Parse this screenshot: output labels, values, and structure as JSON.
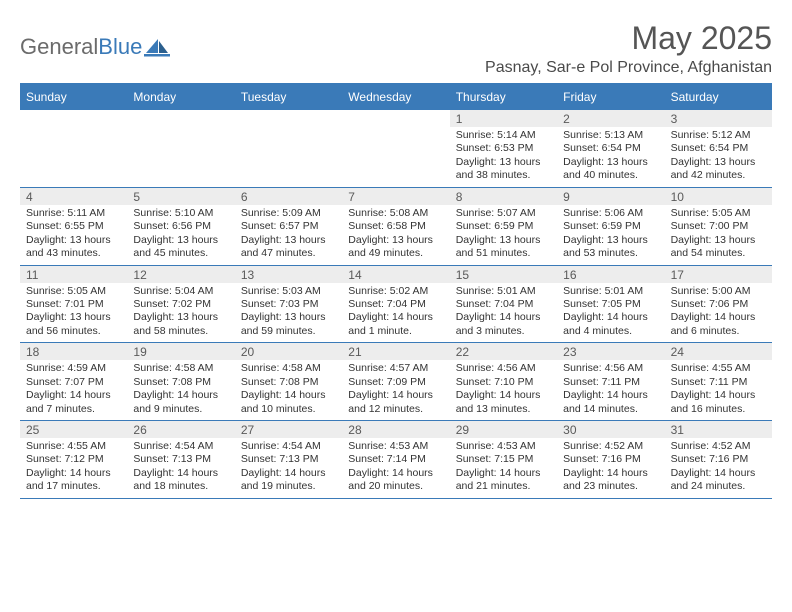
{
  "brand": {
    "general": "General",
    "blue": "Blue"
  },
  "title": "May 2025",
  "subtitle": "Pasnay, Sar-e Pol Province, Afghanistan",
  "dayHeaders": [
    "Sunday",
    "Monday",
    "Tuesday",
    "Wednesday",
    "Thursday",
    "Friday",
    "Saturday"
  ],
  "colors": {
    "accent": "#3a7ab8",
    "dayNumBg": "#ededed",
    "textMuted": "#6b6b6b",
    "title": "#555555"
  },
  "weeks": [
    [
      {
        "date": "",
        "lines": [
          "",
          "",
          "",
          ""
        ]
      },
      {
        "date": "",
        "lines": [
          "",
          "",
          "",
          ""
        ]
      },
      {
        "date": "",
        "lines": [
          "",
          "",
          "",
          ""
        ]
      },
      {
        "date": "",
        "lines": [
          "",
          "",
          "",
          ""
        ]
      },
      {
        "date": "1",
        "lines": [
          "Sunrise: 5:14 AM",
          "Sunset: 6:53 PM",
          "Daylight: 13 hours",
          "and 38 minutes."
        ]
      },
      {
        "date": "2",
        "lines": [
          "Sunrise: 5:13 AM",
          "Sunset: 6:54 PM",
          "Daylight: 13 hours",
          "and 40 minutes."
        ]
      },
      {
        "date": "3",
        "lines": [
          "Sunrise: 5:12 AM",
          "Sunset: 6:54 PM",
          "Daylight: 13 hours",
          "and 42 minutes."
        ]
      }
    ],
    [
      {
        "date": "4",
        "lines": [
          "Sunrise: 5:11 AM",
          "Sunset: 6:55 PM",
          "Daylight: 13 hours",
          "and 43 minutes."
        ]
      },
      {
        "date": "5",
        "lines": [
          "Sunrise: 5:10 AM",
          "Sunset: 6:56 PM",
          "Daylight: 13 hours",
          "and 45 minutes."
        ]
      },
      {
        "date": "6",
        "lines": [
          "Sunrise: 5:09 AM",
          "Sunset: 6:57 PM",
          "Daylight: 13 hours",
          "and 47 minutes."
        ]
      },
      {
        "date": "7",
        "lines": [
          "Sunrise: 5:08 AM",
          "Sunset: 6:58 PM",
          "Daylight: 13 hours",
          "and 49 minutes."
        ]
      },
      {
        "date": "8",
        "lines": [
          "Sunrise: 5:07 AM",
          "Sunset: 6:59 PM",
          "Daylight: 13 hours",
          "and 51 minutes."
        ]
      },
      {
        "date": "9",
        "lines": [
          "Sunrise: 5:06 AM",
          "Sunset: 6:59 PM",
          "Daylight: 13 hours",
          "and 53 minutes."
        ]
      },
      {
        "date": "10",
        "lines": [
          "Sunrise: 5:05 AM",
          "Sunset: 7:00 PM",
          "Daylight: 13 hours",
          "and 54 minutes."
        ]
      }
    ],
    [
      {
        "date": "11",
        "lines": [
          "Sunrise: 5:05 AM",
          "Sunset: 7:01 PM",
          "Daylight: 13 hours",
          "and 56 minutes."
        ]
      },
      {
        "date": "12",
        "lines": [
          "Sunrise: 5:04 AM",
          "Sunset: 7:02 PM",
          "Daylight: 13 hours",
          "and 58 minutes."
        ]
      },
      {
        "date": "13",
        "lines": [
          "Sunrise: 5:03 AM",
          "Sunset: 7:03 PM",
          "Daylight: 13 hours",
          "and 59 minutes."
        ]
      },
      {
        "date": "14",
        "lines": [
          "Sunrise: 5:02 AM",
          "Sunset: 7:04 PM",
          "Daylight: 14 hours",
          "and 1 minute."
        ]
      },
      {
        "date": "15",
        "lines": [
          "Sunrise: 5:01 AM",
          "Sunset: 7:04 PM",
          "Daylight: 14 hours",
          "and 3 minutes."
        ]
      },
      {
        "date": "16",
        "lines": [
          "Sunrise: 5:01 AM",
          "Sunset: 7:05 PM",
          "Daylight: 14 hours",
          "and 4 minutes."
        ]
      },
      {
        "date": "17",
        "lines": [
          "Sunrise: 5:00 AM",
          "Sunset: 7:06 PM",
          "Daylight: 14 hours",
          "and 6 minutes."
        ]
      }
    ],
    [
      {
        "date": "18",
        "lines": [
          "Sunrise: 4:59 AM",
          "Sunset: 7:07 PM",
          "Daylight: 14 hours",
          "and 7 minutes."
        ]
      },
      {
        "date": "19",
        "lines": [
          "Sunrise: 4:58 AM",
          "Sunset: 7:08 PM",
          "Daylight: 14 hours",
          "and 9 minutes."
        ]
      },
      {
        "date": "20",
        "lines": [
          "Sunrise: 4:58 AM",
          "Sunset: 7:08 PM",
          "Daylight: 14 hours",
          "and 10 minutes."
        ]
      },
      {
        "date": "21",
        "lines": [
          "Sunrise: 4:57 AM",
          "Sunset: 7:09 PM",
          "Daylight: 14 hours",
          "and 12 minutes."
        ]
      },
      {
        "date": "22",
        "lines": [
          "Sunrise: 4:56 AM",
          "Sunset: 7:10 PM",
          "Daylight: 14 hours",
          "and 13 minutes."
        ]
      },
      {
        "date": "23",
        "lines": [
          "Sunrise: 4:56 AM",
          "Sunset: 7:11 PM",
          "Daylight: 14 hours",
          "and 14 minutes."
        ]
      },
      {
        "date": "24",
        "lines": [
          "Sunrise: 4:55 AM",
          "Sunset: 7:11 PM",
          "Daylight: 14 hours",
          "and 16 minutes."
        ]
      }
    ],
    [
      {
        "date": "25",
        "lines": [
          "Sunrise: 4:55 AM",
          "Sunset: 7:12 PM",
          "Daylight: 14 hours",
          "and 17 minutes."
        ]
      },
      {
        "date": "26",
        "lines": [
          "Sunrise: 4:54 AM",
          "Sunset: 7:13 PM",
          "Daylight: 14 hours",
          "and 18 minutes."
        ]
      },
      {
        "date": "27",
        "lines": [
          "Sunrise: 4:54 AM",
          "Sunset: 7:13 PM",
          "Daylight: 14 hours",
          "and 19 minutes."
        ]
      },
      {
        "date": "28",
        "lines": [
          "Sunrise: 4:53 AM",
          "Sunset: 7:14 PM",
          "Daylight: 14 hours",
          "and 20 minutes."
        ]
      },
      {
        "date": "29",
        "lines": [
          "Sunrise: 4:53 AM",
          "Sunset: 7:15 PM",
          "Daylight: 14 hours",
          "and 21 minutes."
        ]
      },
      {
        "date": "30",
        "lines": [
          "Sunrise: 4:52 AM",
          "Sunset: 7:16 PM",
          "Daylight: 14 hours",
          "and 23 minutes."
        ]
      },
      {
        "date": "31",
        "lines": [
          "Sunrise: 4:52 AM",
          "Sunset: 7:16 PM",
          "Daylight: 14 hours",
          "and 24 minutes."
        ]
      }
    ]
  ]
}
